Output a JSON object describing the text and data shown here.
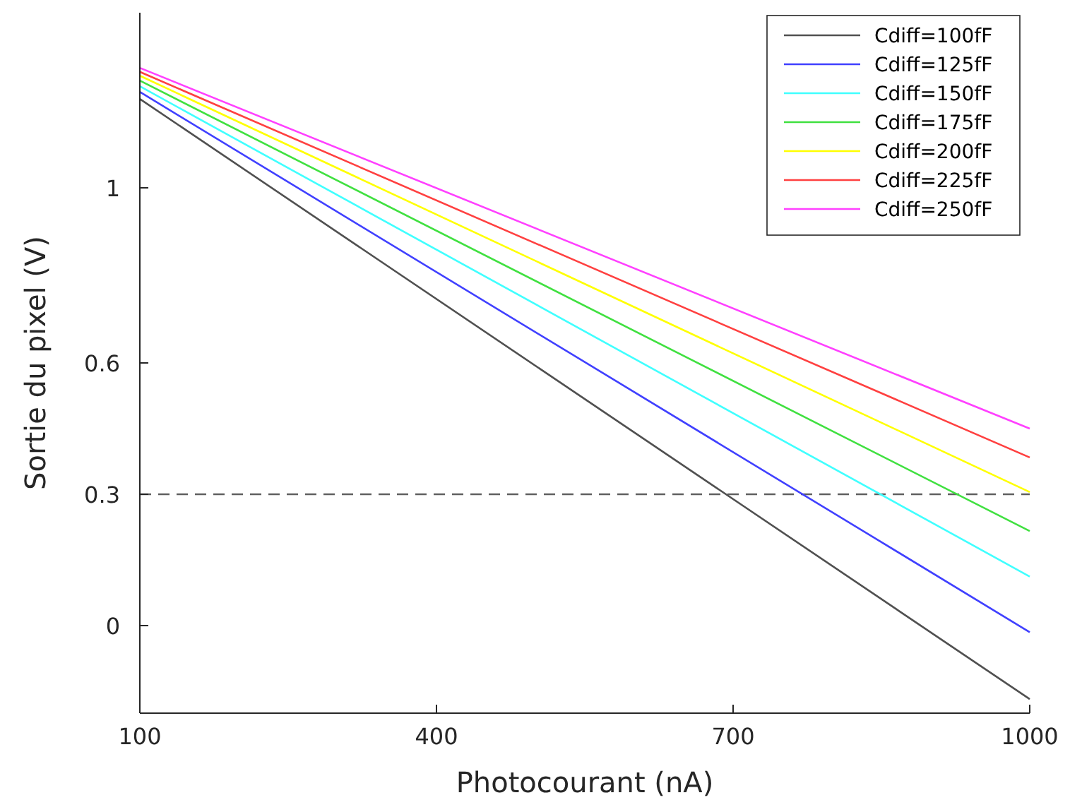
{
  "chart_data": {
    "type": "line",
    "xlabel": "Photocourant (nA)",
    "ylabel": "Sortie du pixel (V)",
    "x": [
      100,
      1000
    ],
    "series": [
      {
        "name": "Cdiff=100fF",
        "color": "#505050",
        "values": [
          1.203,
          -0.168
        ]
      },
      {
        "name": "Cdiff=125fF",
        "color": "#4040ff",
        "values": [
          1.219,
          -0.015
        ]
      },
      {
        "name": "Cdiff=150fF",
        "color": "#40ffff",
        "values": [
          1.232,
          0.112
        ]
      },
      {
        "name": "Cdiff=175fF",
        "color": "#40e040",
        "values": [
          1.245,
          0.216
        ]
      },
      {
        "name": "Cdiff=200fF",
        "color": "#ffff00",
        "values": [
          1.256,
          0.305
        ]
      },
      {
        "name": "Cdiff=225fF",
        "color": "#ff4040",
        "values": [
          1.265,
          0.384
        ]
      },
      {
        "name": "Cdiff=250fF",
        "color": "#ff40ff",
        "values": [
          1.274,
          0.45
        ]
      }
    ],
    "xlim": [
      100,
      1000
    ],
    "xticks": [
      100,
      400,
      700,
      1000
    ],
    "ylim": [
      -0.2,
      1.4
    ],
    "yticks": [
      0,
      0.3,
      0.6,
      1
    ],
    "ref_lines": [
      {
        "axis": "y",
        "value": 0.3,
        "color": "#606060",
        "line_style": "dashed"
      }
    ],
    "grid": false,
    "legend": "top right",
    "line_style": "solid"
  }
}
